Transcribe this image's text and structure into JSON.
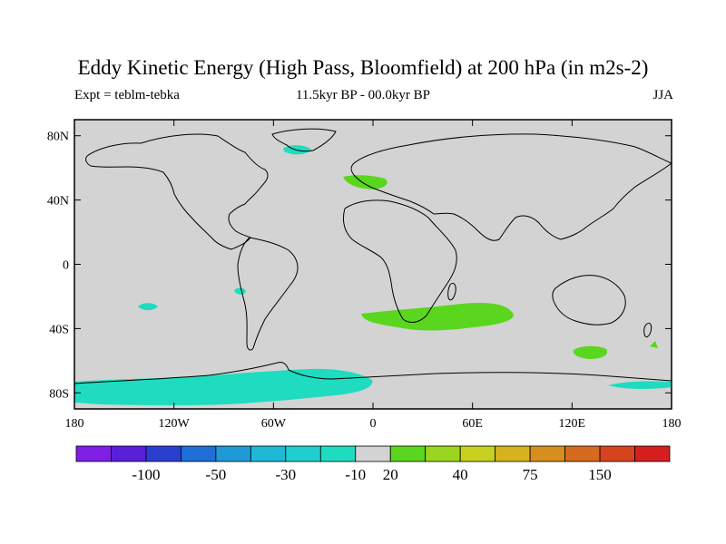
{
  "title": "Eddy Kinetic Energy (High Pass, Bloomfield) at 200 hPa (in m2s-2)",
  "experiment": "Expt = teblm-tebka",
  "period": "11.5kyr BP - 00.0kyr BP",
  "season": "JJA",
  "land_color": "#d3d3d3",
  "coast_color": "#000000",
  "axes": {
    "lat_ticks": [
      {
        "value": 80,
        "label": "80N"
      },
      {
        "value": 40,
        "label": "40N"
      },
      {
        "value": 0,
        "label": "0"
      },
      {
        "value": -40,
        "label": "40S"
      },
      {
        "value": -80,
        "label": "80S"
      }
    ],
    "lon_ticks": [
      {
        "value": -180,
        "label": "180"
      },
      {
        "value": -120,
        "label": "120W"
      },
      {
        "value": -60,
        "label": "60W"
      },
      {
        "value": 0,
        "label": "0"
      },
      {
        "value": 60,
        "label": "60E"
      },
      {
        "value": 120,
        "label": "120E"
      },
      {
        "value": 180,
        "label": "180"
      }
    ]
  },
  "colorbar": {
    "colors": [
      "#7f1fe6",
      "#5a1fd9",
      "#2a3fd0",
      "#1f6fd6",
      "#1f9ad6",
      "#1fb8d6",
      "#1fcfd0",
      "#1fdcc0",
      "#d3d3d3",
      "#5ad61f",
      "#9ad61f",
      "#c8d11f",
      "#d6b21f",
      "#d68f1f",
      "#d66a1f",
      "#d6441f",
      "#d61f1f"
    ],
    "labels": [
      "-100",
      "-50",
      "-30",
      "-10",
      "20",
      "40",
      "75",
      "150"
    ]
  },
  "map_regions": [
    {
      "name": "greenland-negative",
      "color": "#1fdcc0"
    },
    {
      "name": "europe-positive",
      "color": "#5ad61f"
    },
    {
      "name": "pacific-negative",
      "color": "#1fdcc0"
    },
    {
      "name": "south-atlantic-negative",
      "color": "#1fdcc0"
    },
    {
      "name": "south-indian-positive",
      "color": "#5ad61f"
    },
    {
      "name": "australia-south-positive",
      "color": "#5ad61f"
    },
    {
      "name": "nz-positive",
      "color": "#5ad61f"
    },
    {
      "name": "antarctic-negative",
      "color": "#1fdcc0"
    },
    {
      "name": "antarctic-east-negative",
      "color": "#1fdcc0"
    }
  ]
}
